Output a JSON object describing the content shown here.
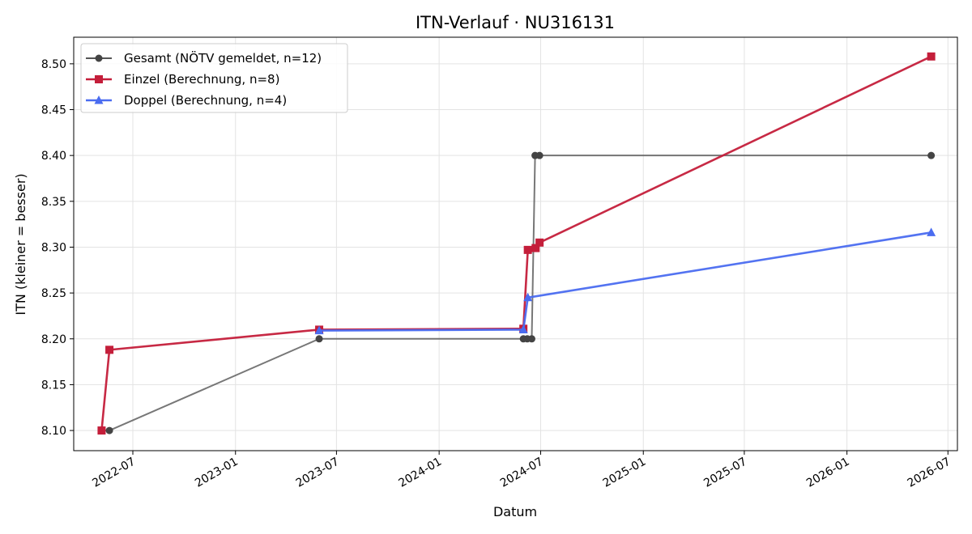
{
  "chart_data": {
    "type": "line",
    "title": "ITN-Verlauf · NU316131",
    "xlabel": "Datum",
    "ylabel": "ITN  (kleiner = besser)",
    "x_axis": {
      "type": "date",
      "ticks": [
        "2022-07",
        "2023-01",
        "2023-07",
        "2024-01",
        "2024-07",
        "2025-01",
        "2025-07",
        "2026-01",
        "2026-07"
      ],
      "range": [
        "2022-03-17",
        "2026-07-18"
      ]
    },
    "y_axis": {
      "ticks": [
        "8.10",
        "8.15",
        "8.20",
        "8.25",
        "8.30",
        "8.35",
        "8.40",
        "8.45",
        "8.50"
      ],
      "ylim": [
        8.078,
        8.529
      ]
    },
    "grid": true,
    "legend_position": "top-left",
    "series": [
      {
        "name": "Gesamt (NÖTV gemeldet, n=12)",
        "color": "#555555",
        "marker": "circle",
        "points": [
          {
            "x": "2022-05-06",
            "y": 8.1
          },
          {
            "x": "2022-05-20",
            "y": 8.1
          },
          {
            "x": "2023-05-31",
            "y": 8.2
          },
          {
            "x": "2024-05-31",
            "y": 8.2
          },
          {
            "x": "2024-06-07",
            "y": 8.2
          },
          {
            "x": "2024-06-15",
            "y": 8.2
          },
          {
            "x": "2024-06-21",
            "y": 8.4
          },
          {
            "x": "2024-06-29",
            "y": 8.4
          },
          {
            "x": "2026-06-01",
            "y": 8.4
          }
        ]
      },
      {
        "name": "Einzel (Berechnung, n=8)",
        "color": "#c41e3a",
        "marker": "square",
        "points": [
          {
            "x": "2022-05-06",
            "y": 8.1
          },
          {
            "x": "2022-05-20",
            "y": 8.188
          },
          {
            "x": "2023-05-31",
            "y": 8.21
          },
          {
            "x": "2024-05-31",
            "y": 8.211
          },
          {
            "x": "2024-06-08",
            "y": 8.297
          },
          {
            "x": "2024-06-22",
            "y": 8.299
          },
          {
            "x": "2024-06-29",
            "y": 8.305
          },
          {
            "x": "2026-06-01",
            "y": 8.508
          }
        ]
      },
      {
        "name": "Doppel (Berechnung, n=4)",
        "color": "#4a6cf0",
        "marker": "triangle",
        "points": [
          {
            "x": "2023-05-31",
            "y": 8.209
          },
          {
            "x": "2024-05-31",
            "y": 8.21
          },
          {
            "x": "2024-06-08",
            "y": 8.245
          },
          {
            "x": "2026-06-01",
            "y": 8.316
          }
        ]
      }
    ]
  }
}
